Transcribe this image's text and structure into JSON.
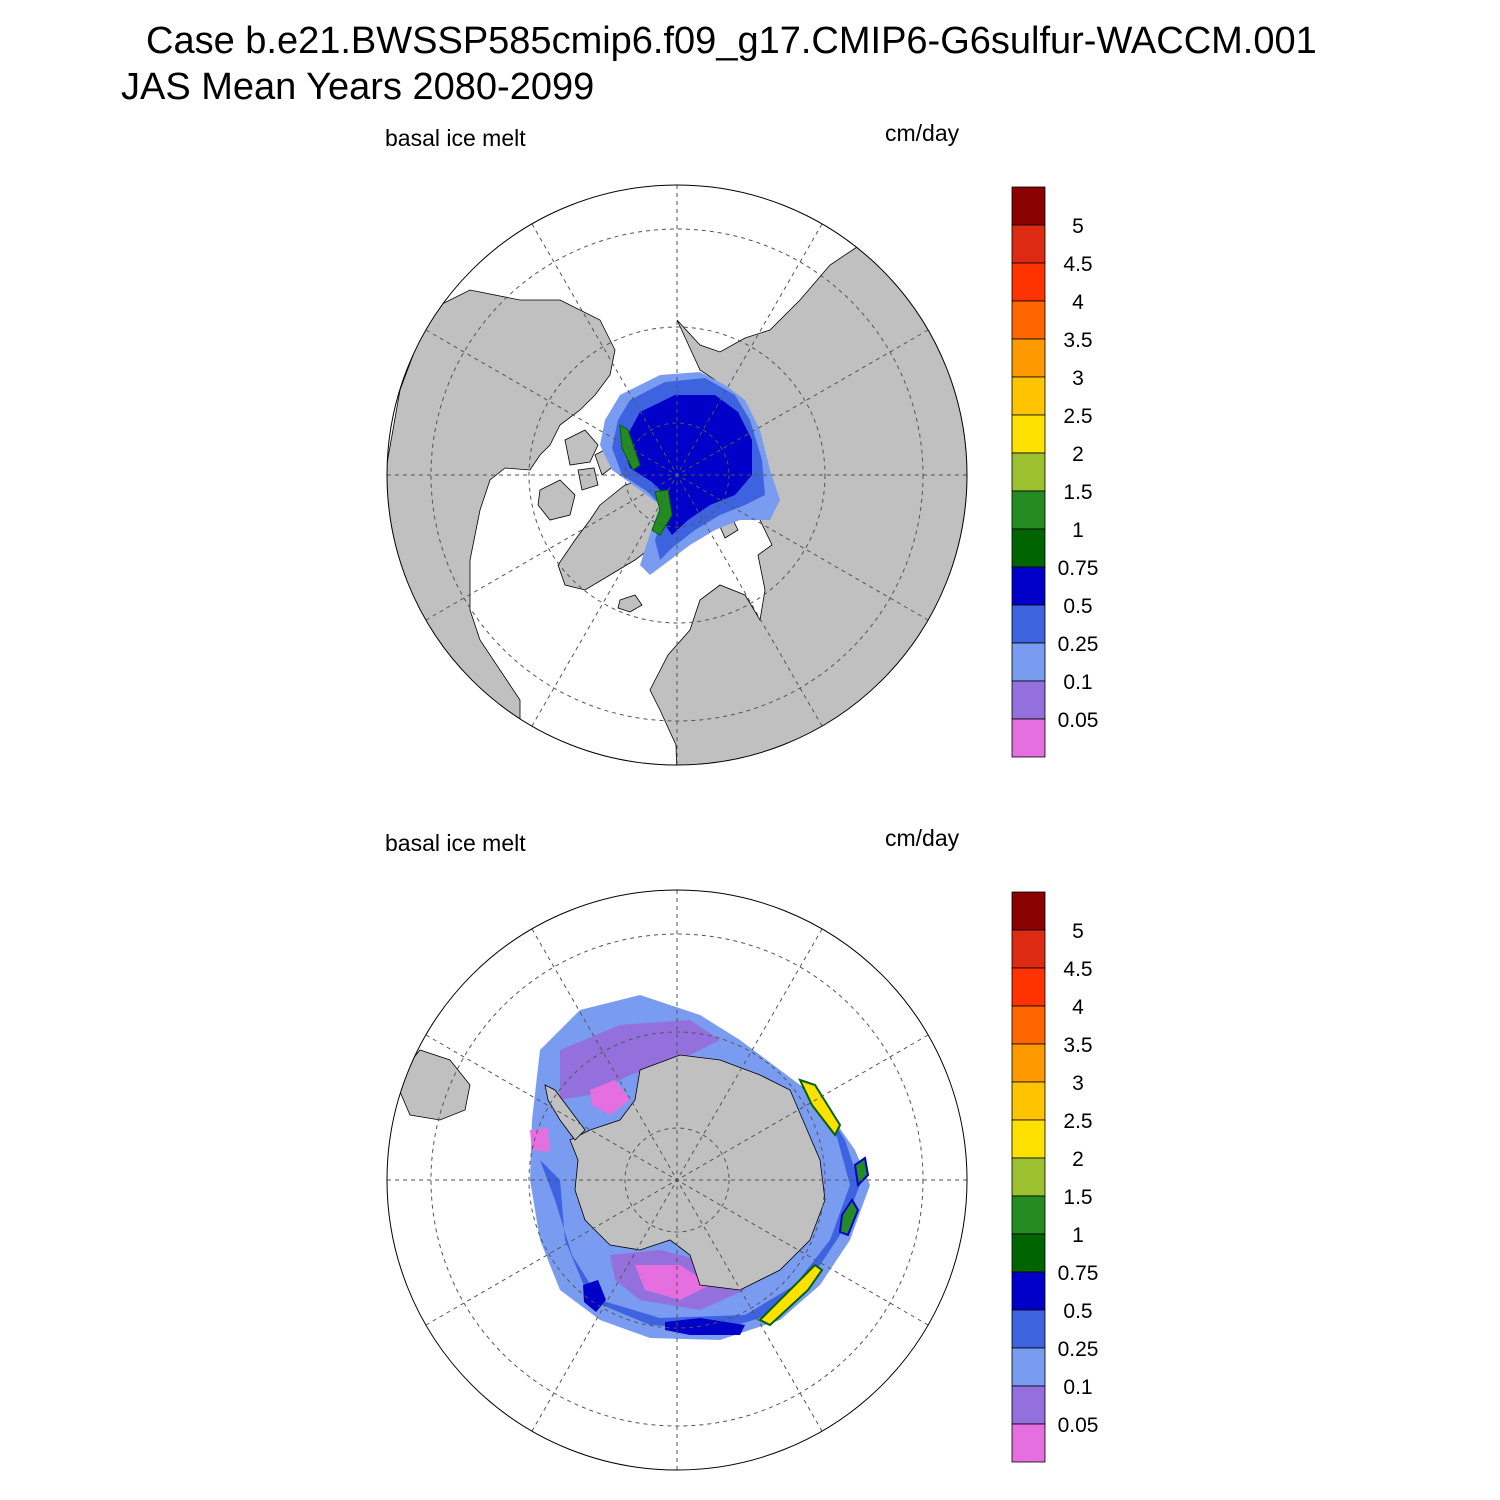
{
  "header": {
    "case_line": "Case b.e21.BWSSP585cmip6.f09_g17.CMIP6-G6sulfur-WACCM.001",
    "period_line": "JAS Mean   Years 2080-2099"
  },
  "panels": [
    {
      "id": "north",
      "hemisphere": "Arctic",
      "field_label": "basal ice melt",
      "units_label": "cm/day"
    },
    {
      "id": "south",
      "hemisphere": "Antarctic",
      "field_label": "basal ice melt",
      "units_label": "cm/day"
    }
  ],
  "colorbar": {
    "labels": [
      "5",
      "4.5",
      "4",
      "3.5",
      "3",
      "2.5",
      "2",
      "1.5",
      "1",
      "0.75",
      "0.5",
      "0.25",
      "0.1",
      "0.05"
    ],
    "colors": [
      "#8b0000",
      "#dd2a12",
      "#ff3300",
      "#ff6600",
      "#ff9900",
      "#ffc400",
      "#ffe100",
      "#9dc030",
      "#238b22",
      "#006400",
      "#0000c8",
      "#3d63e0",
      "#7a9cf0",
      "#9370db",
      "#e56fe0"
    ]
  },
  "colors": {
    "land": "#c0c0c0",
    "ocean": "#ffffff",
    "grid": "#555555"
  }
}
